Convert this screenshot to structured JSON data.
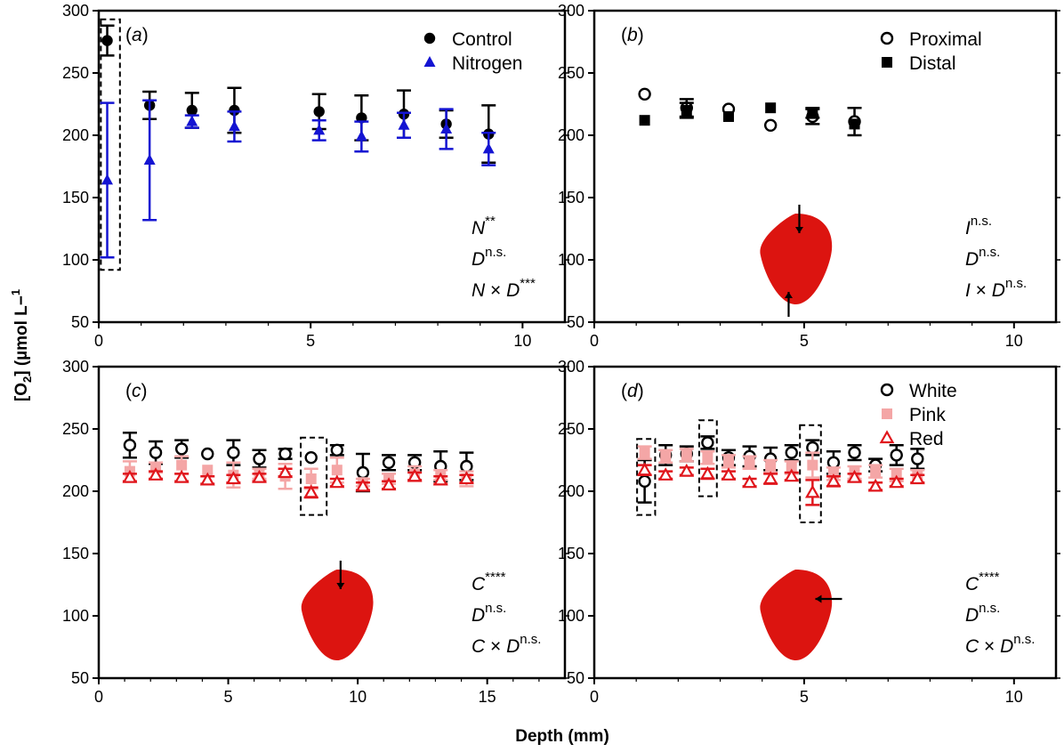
{
  "figure": {
    "ylabel": "[O2] (µmol L−1)",
    "xlabel": "Depth (mm)"
  },
  "chart_data": [
    {
      "panel": "(a)",
      "type": "scatter",
      "xlim": [
        0,
        11
      ],
      "ylim": [
        50,
        300
      ],
      "xticks": [
        0,
        5,
        10
      ],
      "yticks": [
        50,
        100,
        150,
        200,
        250,
        300
      ],
      "legend_position": "top-right",
      "series": [
        {
          "name": "Control",
          "marker": "filled-circle",
          "color": "#000000",
          "x": [
            0.2,
            1.2,
            2.2,
            3.2,
            5.2,
            6.2,
            7.2,
            8.2,
            9.2
          ],
          "y": [
            276,
            224,
            220,
            220,
            219,
            214,
            217,
            209,
            201
          ],
          "err": [
            12,
            11,
            14,
            18,
            14,
            18,
            19,
            11,
            23
          ]
        },
        {
          "name": "Nitrogen",
          "marker": "filled-triangle",
          "color": "#1414d2",
          "x": [
            0.2,
            1.2,
            2.2,
            3.2,
            5.2,
            6.2,
            7.2,
            8.2,
            9.2
          ],
          "y": [
            164,
            180,
            211,
            207,
            204,
            199,
            208,
            205,
            189
          ],
          "err": [
            62,
            48,
            5,
            12,
            8,
            12,
            10,
            16,
            13
          ]
        }
      ],
      "highlight_boxes": [
        {
          "x": [
            0.05,
            0.5
          ],
          "y": [
            92,
            293
          ]
        }
      ],
      "stats": [
        {
          "term": "N",
          "sup": "**"
        },
        {
          "term": "D",
          "sup": "n.s."
        },
        {
          "term": "N × D",
          "sup": "***"
        }
      ]
    },
    {
      "panel": "(b)",
      "type": "scatter",
      "xlim": [
        0,
        11
      ],
      "ylim": [
        50,
        300
      ],
      "xticks": [
        0,
        5,
        10
      ],
      "yticks": [
        50,
        100,
        150,
        200,
        250,
        300
      ],
      "legend_position": "top-right",
      "series": [
        {
          "name": "Proximal",
          "marker": "open-circle",
          "color": "#000000",
          "x": [
            1.2,
            2.2,
            3.2,
            4.2,
            5.2,
            6.2
          ],
          "y": [
            233,
            222,
            221,
            208,
            215,
            211
          ],
          "err": [
            0,
            7,
            0,
            0,
            6,
            11
          ]
        },
        {
          "name": "Distal",
          "marker": "filled-square",
          "color": "#000000",
          "x": [
            1.2,
            2.2,
            3.2,
            4.2,
            5.2,
            6.2
          ],
          "y": [
            212,
            220,
            215,
            222,
            218,
            209
          ],
          "err": [
            0,
            6,
            0,
            0,
            4,
            0
          ]
        }
      ],
      "fruit_icon": {
        "center_x": 4.8,
        "arrows": [
          "top",
          "bottom"
        ]
      },
      "stats": [
        {
          "term": "I",
          "sup": "n.s."
        },
        {
          "term": "D",
          "sup": "n.s."
        },
        {
          "term": "I × D",
          "sup": "n.s."
        }
      ]
    },
    {
      "panel": "(c)",
      "type": "scatter",
      "xlim": [
        0,
        18
      ],
      "ylim": [
        50,
        300
      ],
      "xticks": [
        0,
        5,
        10,
        15
      ],
      "yticks": [
        50,
        100,
        150,
        200,
        250,
        300
      ],
      "series": [
        {
          "name": "White",
          "marker": "open-circle",
          "color": "#000000",
          "x": [
            1.2,
            2.2,
            3.2,
            4.2,
            5.2,
            6.2,
            7.2,
            8.2,
            9.2,
            10.2,
            11.2,
            12.2,
            13.2,
            14.2
          ],
          "y": [
            237,
            231,
            234,
            230,
            231,
            226,
            230,
            227,
            233,
            215,
            223,
            223,
            220,
            220
          ],
          "err": [
            10,
            9,
            7,
            0,
            10,
            7,
            4,
            0,
            4,
            15,
            6,
            6,
            12,
            11
          ]
        },
        {
          "name": "Pink",
          "marker": "filled-square",
          "color": "#f4a6a6",
          "x": [
            1.2,
            2.2,
            3.2,
            4.2,
            5.2,
            6.2,
            7.2,
            8.2,
            9.2,
            10.2,
            11.2,
            12.2,
            13.2,
            14.2
          ],
          "y": [
            216,
            219,
            221,
            217,
            213,
            214,
            212,
            210,
            217,
            207,
            210,
            214,
            213,
            210
          ],
          "err": [
            8,
            4,
            7,
            0,
            10,
            4,
            10,
            8,
            10,
            3,
            4,
            6,
            4,
            6
          ]
        },
        {
          "name": "Red",
          "marker": "open-triangle",
          "color": "#e0161c",
          "x": [
            1.2,
            2.2,
            3.2,
            4.2,
            5.2,
            6.2,
            7.2,
            8.2,
            9.2,
            10.2,
            11.2,
            12.2,
            13.2,
            14.2
          ],
          "y": [
            211,
            213,
            211,
            209,
            210,
            211,
            215,
            199,
            207,
            204,
            205,
            212,
            209,
            210
          ],
          "err": [
            3,
            3,
            3,
            3,
            3,
            3,
            3,
            4,
            3,
            3,
            3,
            3,
            3,
            3
          ]
        }
      ],
      "highlight_boxes": [
        {
          "x": [
            7.8,
            8.8
          ],
          "y": [
            181,
            243
          ]
        }
      ],
      "fruit_icon": {
        "center_x": 9.2,
        "arrows": [
          "top"
        ]
      },
      "stats": [
        {
          "term": "C",
          "sup": "****"
        },
        {
          "term": "D",
          "sup": "n.s."
        },
        {
          "term": "C × D",
          "sup": "n.s."
        }
      ]
    },
    {
      "panel": "(d)",
      "type": "scatter",
      "xlim": [
        0,
        11
      ],
      "ylim": [
        50,
        300
      ],
      "xticks": [
        0,
        5,
        10
      ],
      "yticks": [
        50,
        100,
        150,
        200,
        250,
        300
      ],
      "legend_position": "top-right",
      "series": [
        {
          "name": "White",
          "marker": "open-circle",
          "color": "#000000",
          "x": [
            1.2,
            1.7,
            2.2,
            2.7,
            3.2,
            3.7,
            4.2,
            4.7,
            5.2,
            5.7,
            6.2,
            6.7,
            7.2,
            7.7
          ],
          "y": [
            208,
            229,
            230,
            239,
            227,
            228,
            226,
            231,
            235,
            223,
            231,
            221,
            229,
            226
          ],
          "err": [
            17,
            8,
            6,
            5,
            6,
            8,
            9,
            6,
            6,
            9,
            6,
            5,
            8,
            8
          ]
        },
        {
          "name": "Pink",
          "marker": "filled-square",
          "color": "#f4a6a6",
          "x": [
            1.2,
            1.7,
            2.2,
            2.7,
            3.2,
            3.7,
            4.2,
            4.7,
            5.2,
            5.7,
            6.2,
            6.7,
            7.2,
            7.7
          ],
          "y": [
            231,
            228,
            229,
            227,
            224,
            223,
            220,
            219,
            221,
            214,
            215,
            216,
            213,
            212
          ],
          "err": [
            5,
            5,
            5,
            5,
            5,
            5,
            5,
            5,
            10,
            5,
            5,
            5,
            5,
            5
          ]
        },
        {
          "name": "Red",
          "marker": "open-triangle",
          "color": "#e0161c",
          "x": [
            1.2,
            1.7,
            2.2,
            2.7,
            3.2,
            3.7,
            4.2,
            4.7,
            5.2,
            5.7,
            6.2,
            6.7,
            7.2,
            7.7
          ],
          "y": [
            217,
            213,
            216,
            214,
            213,
            207,
            210,
            212,
            199,
            208,
            211,
            204,
            207,
            210
          ],
          "err": [
            4,
            3,
            3,
            4,
            3,
            3,
            4,
            3,
            10,
            4,
            3,
            3,
            3,
            3
          ]
        }
      ],
      "highlight_boxes": [
        {
          "x": [
            1.02,
            1.45
          ],
          "y": [
            181,
            242
          ]
        },
        {
          "x": [
            2.5,
            2.92
          ],
          "y": [
            196,
            257
          ]
        },
        {
          "x": [
            4.9,
            5.4
          ],
          "y": [
            175,
            253
          ]
        }
      ],
      "fruit_icon": {
        "center_x": 4.8,
        "arrows": [
          "side"
        ]
      },
      "stats": [
        {
          "term": "C",
          "sup": "****"
        },
        {
          "term": "D",
          "sup": "n.s."
        },
        {
          "term": "C × D",
          "sup": "n.s."
        }
      ]
    }
  ]
}
